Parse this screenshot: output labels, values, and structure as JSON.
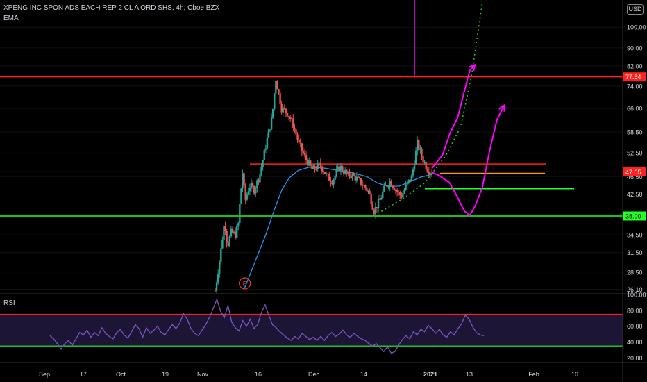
{
  "header": {
    "symbol_title": "XPENG INC SPON ADS EACH REP 2 CL A ORD SHS, 4h, Cboe BZX",
    "indicator_label": "EMA",
    "currency_button": "USD"
  },
  "rsi_pane": {
    "label": "RSI"
  },
  "earnings_marker": {
    "label": "E"
  },
  "colors": {
    "background": "#000000",
    "up_candle": "#26a69a",
    "down_candle": "#ef5350",
    "ema": "#2196f3",
    "resistance_line": "#ff2020",
    "support_line": "#22ff22",
    "orange_line": "#ff9800",
    "projection_path": "#ff00ff",
    "rsi_line": "#7e57c2",
    "rsi_band_fill": "#1d1535",
    "axis_text": "#d1d4dc"
  },
  "chart_data": {
    "type": "candlestick",
    "timeframe": "4h",
    "price_axis": {
      "scale": "log",
      "tick_labels": [
        "100.00",
        "90.00",
        "82.00",
        "74.00",
        "66.00",
        "58.50",
        "52.50",
        "46.50",
        "42.50",
        "38.00",
        "34.50",
        "31.50",
        "28.50",
        "26.10"
      ],
      "tick_values": [
        100,
        90,
        82,
        74,
        66,
        58.5,
        52.5,
        46.5,
        42.5,
        38,
        34.5,
        31.5,
        28.5,
        26.1
      ],
      "range": [
        25.5,
        115
      ]
    },
    "time_axis": {
      "labels": [
        "Sep",
        "17",
        "Oct",
        "19",
        "Nov",
        "16",
        "Dec",
        "14",
        "2021",
        "13",
        "Feb",
        "10"
      ],
      "bold_labels": [
        "2021"
      ]
    },
    "price_labels": [
      {
        "value": 77.54,
        "text": "77.54",
        "color": "#ff2020"
      },
      {
        "value": 47.65,
        "text": "47.65",
        "color": "#ff2020"
      },
      {
        "value": 38.0,
        "text": "38.00",
        "color": "#22ff22"
      }
    ],
    "last_price": 47.65,
    "horizontal_lines": [
      {
        "value": 77.54,
        "color": "#ff2020",
        "span": "full"
      },
      {
        "value": 38.0,
        "color": "#22ff22",
        "span": "full"
      },
      {
        "value": 49.6,
        "color": "#ff2020",
        "span": "partial"
      },
      {
        "value": 47.3,
        "color": "#ff9800",
        "span": "partial"
      },
      {
        "value": 43.7,
        "color": "#22ff22",
        "span": "partial"
      }
    ],
    "price_path": [
      [
        0.0,
        25.9
      ],
      [
        0.013,
        30.5
      ],
      [
        0.026,
        37.0
      ],
      [
        0.034,
        32.5
      ],
      [
        0.044,
        35.0
      ],
      [
        0.056,
        34.5
      ],
      [
        0.064,
        36.5
      ],
      [
        0.076,
        47.5
      ],
      [
        0.083,
        41.0
      ],
      [
        0.095,
        44.5
      ],
      [
        0.108,
        43.5
      ],
      [
        0.122,
        46.5
      ],
      [
        0.133,
        51.0
      ],
      [
        0.145,
        57.0
      ],
      [
        0.158,
        63.0
      ],
      [
        0.168,
        76.8
      ],
      [
        0.176,
        71.0
      ],
      [
        0.184,
        66.0
      ],
      [
        0.2,
        64.5
      ],
      [
        0.215,
        61.0
      ],
      [
        0.232,
        55.0
      ],
      [
        0.25,
        51.0
      ],
      [
        0.27,
        48.0
      ],
      [
        0.29,
        49.5
      ],
      [
        0.31,
        46.5
      ],
      [
        0.325,
        45.5
      ],
      [
        0.345,
        49.0
      ],
      [
        0.365,
        47.0
      ],
      [
        0.385,
        46.5
      ],
      [
        0.405,
        45.0
      ],
      [
        0.425,
        43.0
      ],
      [
        0.44,
        39.0
      ],
      [
        0.455,
        41.0
      ],
      [
        0.47,
        44.0
      ],
      [
        0.485,
        45.5
      ],
      [
        0.5,
        43.5
      ],
      [
        0.515,
        42.0
      ],
      [
        0.53,
        44.5
      ],
      [
        0.545,
        46.5
      ],
      [
        0.56,
        55.0
      ],
      [
        0.575,
        51.0
      ],
      [
        0.59,
        48.0
      ],
      [
        0.6,
        47.65
      ]
    ],
    "ema_path": [
      [
        0.082,
        26.3
      ],
      [
        0.11,
        30.0
      ],
      [
        0.14,
        34.5
      ],
      [
        0.165,
        39.5
      ],
      [
        0.185,
        43.5
      ],
      [
        0.205,
        46.2
      ],
      [
        0.23,
        48.0
      ],
      [
        0.26,
        48.8
      ],
      [
        0.3,
        48.6
      ],
      [
        0.34,
        48.0
      ],
      [
        0.38,
        47.4
      ],
      [
        0.42,
        46.5
      ],
      [
        0.45,
        45.0
      ],
      [
        0.48,
        44.2
      ],
      [
        0.51,
        44.3
      ],
      [
        0.54,
        45.3
      ],
      [
        0.57,
        46.4
      ],
      [
        0.6,
        47.0
      ]
    ],
    "earnings_event": {
      "label": "E",
      "position": 0.082
    },
    "projections": [
      {
        "kind": "solid",
        "color": "#ff00ff",
        "points": [
          [
            0.6,
            48.5
          ],
          [
            0.63,
            52.0
          ],
          [
            0.65,
            58.0
          ],
          [
            0.672,
            63.0
          ],
          [
            0.69,
            72.0
          ],
          [
            0.705,
            80.0
          ],
          [
            0.72,
            82.5
          ]
        ]
      },
      {
        "kind": "solid",
        "color": "#ff00ff",
        "points": [
          [
            0.6,
            47.5
          ],
          [
            0.62,
            46.8
          ],
          [
            0.65,
            45.0
          ],
          [
            0.67,
            42.0
          ],
          [
            0.69,
            39.0
          ],
          [
            0.705,
            38.1
          ],
          [
            0.72,
            40.0
          ],
          [
            0.74,
            44.0
          ],
          [
            0.76,
            53.0
          ],
          [
            0.78,
            62.0
          ],
          [
            0.8,
            67.0
          ]
        ]
      },
      {
        "kind": "dotted",
        "color": "#22cc22",
        "points": [
          [
            0.45,
            38.5
          ],
          [
            0.52,
            41.5
          ],
          [
            0.58,
            45.0
          ],
          [
            0.64,
            52.0
          ],
          [
            0.68,
            60.0
          ],
          [
            0.71,
            78.0
          ],
          [
            0.73,
            100.0
          ],
          [
            0.74,
            114.0
          ]
        ]
      }
    ],
    "rsi": {
      "axis_labels": [
        "100.00",
        "80.00",
        "60.00",
        "40.00",
        "20.00"
      ],
      "range": [
        15,
        100
      ],
      "overbought": 75,
      "oversold": 35,
      "values": [
        48,
        44,
        38,
        31,
        38,
        42,
        36,
        44,
        52,
        49,
        55,
        46,
        52,
        48,
        58,
        51,
        47,
        44,
        52,
        56,
        49,
        45,
        53,
        62,
        57,
        46,
        58,
        51,
        55,
        60,
        52,
        49,
        56,
        62,
        57,
        64,
        76,
        69,
        57,
        51,
        48,
        55,
        62,
        71,
        82,
        94,
        79,
        71,
        86,
        65,
        58,
        54,
        67,
        60,
        69,
        57,
        62,
        77,
        87,
        74,
        62,
        58,
        53,
        49,
        45,
        42,
        47,
        44,
        51,
        47,
        43,
        46,
        42,
        47,
        42,
        48,
        52,
        47,
        50,
        55,
        49,
        46,
        51,
        47,
        44,
        42,
        38,
        35,
        38,
        33,
        28,
        34,
        26,
        28,
        36,
        43,
        48,
        44,
        53,
        49,
        56,
        53,
        61,
        57,
        51,
        56,
        49,
        46,
        53,
        49,
        57,
        63,
        74,
        69,
        59,
        52,
        49,
        48
      ]
    }
  }
}
